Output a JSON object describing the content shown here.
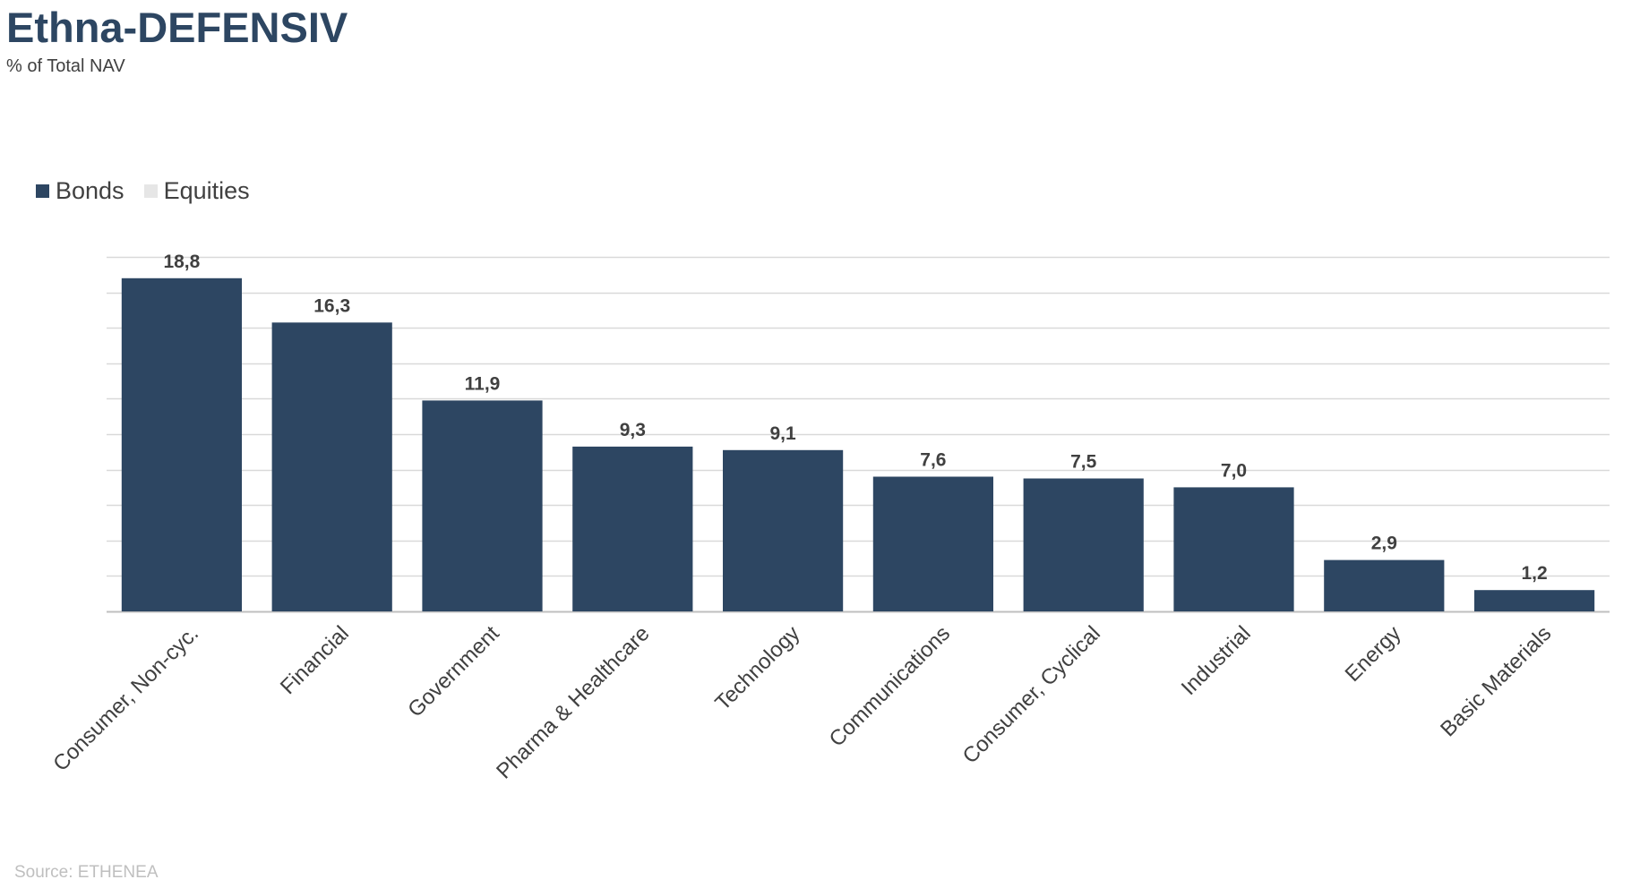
{
  "chart_data": {
    "type": "bar",
    "title": "Ethna-DEFENSIV",
    "subtitle": "% of Total NAV",
    "categories": [
      "Consumer, Non-cyc.",
      "Financial",
      "Government",
      "Pharma & Healthcare",
      "Technology",
      "Communications",
      "Consumer, Cyclical",
      "Industrial",
      "Energy",
      "Basic Materials"
    ],
    "series": [
      {
        "name": "Bonds",
        "color": "#2d4662",
        "values": [
          18.8,
          16.3,
          11.9,
          9.3,
          9.1,
          7.6,
          7.5,
          7.0,
          2.9,
          1.2
        ]
      },
      {
        "name": "Equities",
        "color": "#e6e6e6",
        "values": [
          0,
          0,
          0,
          0,
          0,
          0,
          0,
          0,
          0,
          0
        ]
      }
    ],
    "data_labels": [
      "18,8",
      "16,3",
      "11,9",
      "9,3",
      "9,1",
      "7,6",
      "7,5",
      "7,0",
      "2,9",
      "1,2"
    ],
    "ylim": [
      0,
      20
    ],
    "grid": true,
    "legend_position": "top-left",
    "source": "Source: ETHENEA"
  }
}
